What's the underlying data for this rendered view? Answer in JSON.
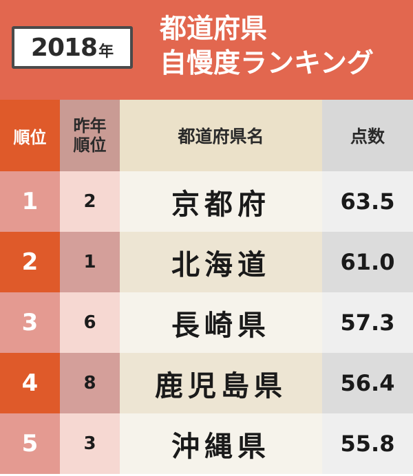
{
  "header": {
    "year": "2018",
    "year_suffix": "年",
    "title_line1": "都道府県",
    "title_line2": "自慢度ランキング"
  },
  "table": {
    "columns": {
      "rank": "順位",
      "prev_line1": "昨年",
      "prev_line2": "順位",
      "name": "都道府県名",
      "score": "点数"
    },
    "rows": [
      {
        "rank": "1",
        "prev": "2",
        "name": "京都府",
        "score": "63.5"
      },
      {
        "rank": "2",
        "prev": "1",
        "name": "北海道",
        "score": "61.0"
      },
      {
        "rank": "3",
        "prev": "6",
        "name": "長崎県",
        "score": "57.3"
      },
      {
        "rank": "4",
        "prev": "8",
        "name": "鹿児島県",
        "score": "56.4"
      },
      {
        "rank": "5",
        "prev": "3",
        "name": "沖縄県",
        "score": "55.8"
      }
    ]
  },
  "colors": {
    "header_bg": "#e2674f",
    "rank_dark": "#df5a2a",
    "rank_light": "#e49a91"
  }
}
